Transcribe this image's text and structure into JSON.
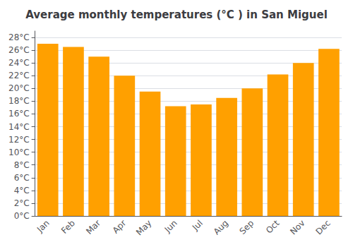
{
  "chart_data": {
    "type": "bar",
    "title": "Average monthly temperatures (°C ) in San Miguel",
    "categories": [
      "Jan",
      "Feb",
      "Mar",
      "Apr",
      "May",
      "Jun",
      "Jul",
      "Aug",
      "Sep",
      "Oct",
      "Nov",
      "Dec"
    ],
    "values": [
      27.0,
      26.5,
      25.0,
      22.0,
      19.5,
      17.2,
      17.5,
      18.5,
      20.0,
      22.2,
      24.0,
      26.2
    ],
    "color": "#FFA000",
    "ylim": [
      0,
      29
    ],
    "yticks": [
      {
        "value": 0,
        "label": "0°C"
      },
      {
        "value": 2,
        "label": "2°C"
      },
      {
        "value": 4,
        "label": "4°C"
      },
      {
        "value": 6,
        "label": "6°C"
      },
      {
        "value": 8,
        "label": "8°C"
      },
      {
        "value": 10,
        "label": "10°C"
      },
      {
        "value": 12,
        "label": "12°C"
      },
      {
        "value": 14,
        "label": "14°C"
      },
      {
        "value": 16,
        "label": "16°C"
      },
      {
        "value": 18,
        "label": "18°C"
      },
      {
        "value": 20,
        "label": "20°C"
      },
      {
        "value": 22,
        "label": "22°C"
      },
      {
        "value": 24,
        "label": "24°C"
      },
      {
        "value": 26,
        "label": "26°C"
      },
      {
        "value": 28,
        "label": "28°C"
      }
    ],
    "grid": true
  }
}
